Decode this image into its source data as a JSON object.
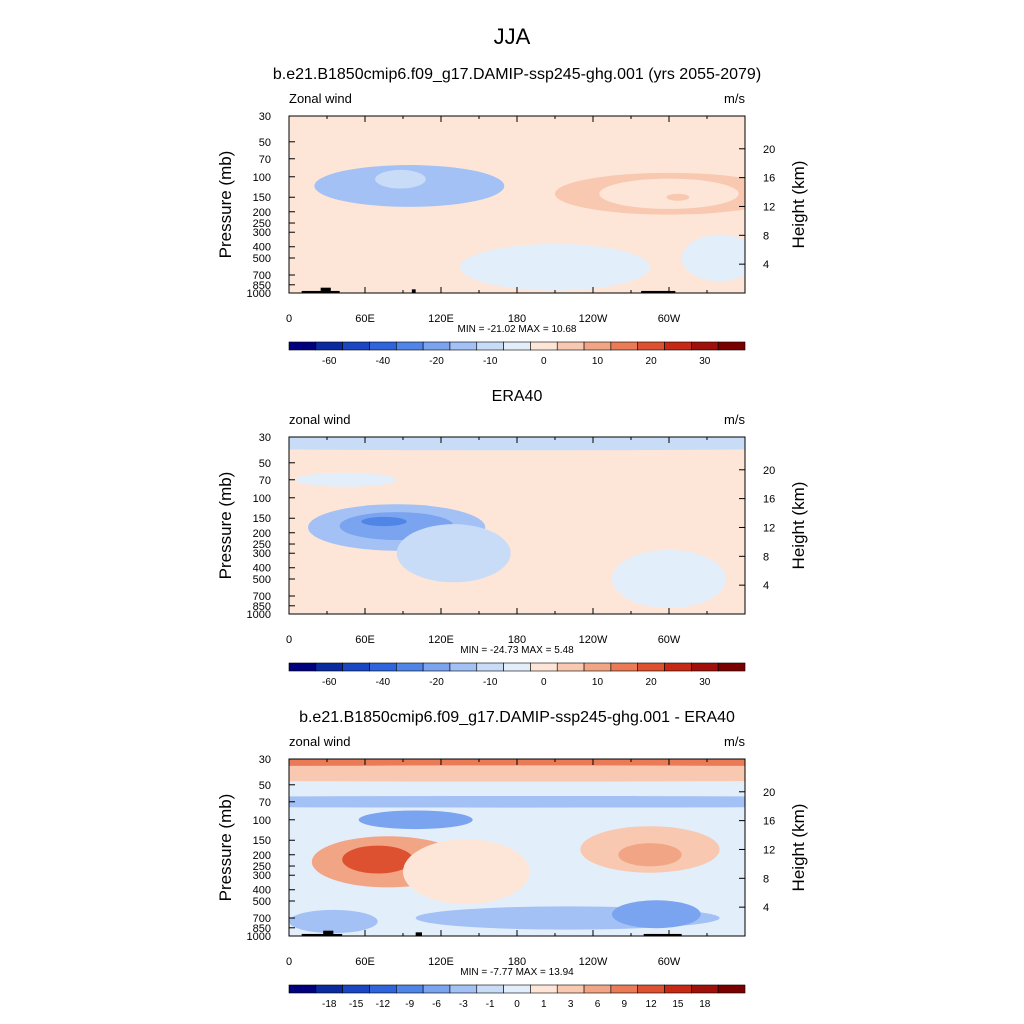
{
  "figure": {
    "title": "JJA",
    "panel_titles": [
      "b.e21.B1850cmip6.f09_g17.DAMIP-ssp245-ghg.001 (yrs 2055-2079)",
      "ERA40",
      "b.e21.B1850cmip6.f09_g17.DAMIP-ssp245-ghg.001 - ERA40"
    ]
  },
  "chart_data": [
    {
      "type": "heatmap",
      "title": "b.e21.B1850cmip6.f09_g17.DAMIP-ssp245-ghg.001 (yrs 2055-2079)",
      "variable_label": "Zonal wind",
      "units": "m/s",
      "ylabel": "Pressure (mb)",
      "ylabel_right": "Height (km)",
      "x_ticks": [
        "0",
        "60E",
        "120E",
        "180",
        "120W",
        "60W"
      ],
      "y_ticks": [
        "30",
        "50",
        "70",
        "100",
        "150",
        "200",
        "250",
        "300",
        "400",
        "500",
        "700",
        "850",
        "1000"
      ],
      "y_ticks_right": [
        "20",
        "16",
        "12",
        "8",
        "4"
      ],
      "xlim": [
        0,
        360
      ],
      "ylim": [
        1000,
        30
      ],
      "y_scale": "log",
      "stats": "MIN = -21.02  MAX =  10.68",
      "background_level": 2.5,
      "features": [
        {
          "lon": 95,
          "p": 120,
          "rlon": 75,
          "rlogp": 0.18,
          "value": -15
        },
        {
          "lon": 95,
          "p": 120,
          "rlon": 45,
          "rlogp": 0.13,
          "value": -12
        },
        {
          "lon": 88,
          "p": 105,
          "rlon": 20,
          "rlogp": 0.08,
          "value": -10
        },
        {
          "lon": 300,
          "p": 140,
          "rlon": 90,
          "rlogp": 0.18,
          "value": 5
        },
        {
          "lon": 300,
          "p": 140,
          "rlon": 55,
          "rlogp": 0.13,
          "value": 4
        },
        {
          "lon": 307,
          "p": 150,
          "rlon": 9,
          "rlogp": 0.03,
          "value": 7
        },
        {
          "lon": 75,
          "p": 400,
          "rlon": 75,
          "rlogp": 0.22,
          "value": 3
        },
        {
          "lon": 80,
          "p": 700,
          "rlon": 25,
          "rlogp": 0.05,
          "value": 3
        },
        {
          "lon": 210,
          "p": 600,
          "rlon": 75,
          "rlogp": 0.2,
          "value": -3
        },
        {
          "lon": 340,
          "p": 500,
          "rlon": 30,
          "rlogp": 0.2,
          "value": -3
        }
      ],
      "terrain": [
        {
          "lon0": 10,
          "lon1": 40,
          "p": 960
        },
        {
          "lon0": 25,
          "lon1": 33,
          "p": 900
        },
        {
          "lon0": 97,
          "lon1": 100,
          "p": 930
        },
        {
          "lon0": 278,
          "lon1": 305,
          "p": 960
        }
      ],
      "colorbar": {
        "labels": [
          "-60",
          "-40",
          "-20",
          "-10",
          "0",
          "10",
          "20",
          "30"
        ],
        "label_positions": [
          1,
          3,
          5,
          7,
          9,
          11,
          13,
          15
        ],
        "levels": [
          -70,
          -60,
          -50,
          -40,
          -30,
          -20,
          -15,
          -10,
          -5,
          0,
          5,
          10,
          15,
          20,
          25,
          30,
          40
        ]
      }
    },
    {
      "type": "heatmap",
      "title": "ERA40",
      "variable_label": "zonal wind",
      "units": "m/s",
      "ylabel": "Pressure (mb)",
      "ylabel_right": "Height (km)",
      "x_ticks": [
        "0",
        "60E",
        "120E",
        "180",
        "120W",
        "60W"
      ],
      "y_ticks": [
        "30",
        "50",
        "70",
        "100",
        "150",
        "200",
        "250",
        "300",
        "400",
        "500",
        "700",
        "850",
        "1000"
      ],
      "y_ticks_right": [
        "20",
        "16",
        "12",
        "8",
        "4"
      ],
      "xlim": [
        0,
        360
      ],
      "ylim": [
        1000,
        30
      ],
      "y_scale": "log",
      "stats": "MIN = -24.73  MAX =   5.48",
      "background_level": 2.5,
      "features": [
        {
          "lon": 180,
          "p": 34,
          "rlon": 400,
          "rlogp": 0.06,
          "value": -7
        },
        {
          "lon": 85,
          "p": 180,
          "rlon": 70,
          "rlogp": 0.2,
          "value": -12
        },
        {
          "lon": 85,
          "p": 175,
          "rlon": 45,
          "rlogp": 0.12,
          "value": -17
        },
        {
          "lon": 75,
          "p": 160,
          "rlon": 18,
          "rlogp": 0.04,
          "value": -22
        },
        {
          "lon": 130,
          "p": 300,
          "rlon": 45,
          "rlogp": 0.25,
          "value": -6
        },
        {
          "lon": 45,
          "p": 70,
          "rlon": 40,
          "rlogp": 0.06,
          "value": -3
        },
        {
          "lon": 270,
          "p": 110,
          "rlon": 80,
          "rlogp": 0.14,
          "value": 4
        },
        {
          "lon": 300,
          "p": 500,
          "rlon": 45,
          "rlogp": 0.25,
          "value": -4
        },
        {
          "lon": 70,
          "p": 650,
          "rlon": 45,
          "rlogp": 0.18,
          "value": 3
        }
      ],
      "terrain": [],
      "colorbar": {
        "labels": [
          "-60",
          "-40",
          "-20",
          "-10",
          "0",
          "10",
          "20",
          "30"
        ],
        "label_positions": [
          1,
          3,
          5,
          7,
          9,
          11,
          13,
          15
        ],
        "levels": [
          -70,
          -60,
          -50,
          -40,
          -30,
          -20,
          -15,
          -10,
          -5,
          0,
          5,
          10,
          15,
          20,
          25,
          30,
          40
        ]
      }
    },
    {
      "type": "heatmap",
      "title": "b.e21.B1850cmip6.f09_g17.DAMIP-ssp245-ghg.001 - ERA40",
      "variable_label": "zonal wind",
      "units": "m/s",
      "ylabel": "Pressure (mb)",
      "ylabel_right": "Height (km)",
      "x_ticks": [
        "0",
        "60E",
        "120E",
        "180",
        "120W",
        "60W"
      ],
      "y_ticks": [
        "30",
        "50",
        "70",
        "100",
        "150",
        "200",
        "250",
        "300",
        "400",
        "500",
        "700",
        "850",
        "1000"
      ],
      "y_ticks_right": [
        "20",
        "16",
        "12",
        "8",
        "4"
      ],
      "xlim": [
        0,
        360
      ],
      "ylim": [
        1000,
        30
      ],
      "y_scale": "log",
      "stats": "MIN = -7.77  MAX =  13.94",
      "background_level": 0.5,
      "features": [
        {
          "lon": 180,
          "p": 30,
          "rlon": 500,
          "rlogp": 0.08,
          "value": 10
        },
        {
          "lon": 180,
          "p": 40,
          "rlon": 500,
          "rlogp": 0.07,
          "value": 5
        },
        {
          "lon": 180,
          "p": 70,
          "rlon": 500,
          "rlogp": 0.05,
          "value": -2
        },
        {
          "lon": 100,
          "p": 100,
          "rlon": 45,
          "rlogp": 0.08,
          "value": -6
        },
        {
          "lon": 78,
          "p": 230,
          "rlon": 60,
          "rlogp": 0.22,
          "value": 7
        },
        {
          "lon": 70,
          "p": 220,
          "rlon": 28,
          "rlogp": 0.12,
          "value": 12
        },
        {
          "lon": 140,
          "p": 280,
          "rlon": 50,
          "rlogp": 0.28,
          "value": 2
        },
        {
          "lon": 285,
          "p": 180,
          "rlon": 55,
          "rlogp": 0.2,
          "value": 5
        },
        {
          "lon": 285,
          "p": 200,
          "rlon": 25,
          "rlogp": 0.1,
          "value": 8
        },
        {
          "lon": 220,
          "p": 700,
          "rlon": 120,
          "rlogp": 0.1,
          "value": -2
        },
        {
          "lon": 290,
          "p": 650,
          "rlon": 35,
          "rlogp": 0.12,
          "value": -4
        },
        {
          "lon": 35,
          "p": 750,
          "rlon": 35,
          "rlogp": 0.1,
          "value": -2
        }
      ],
      "terrain": [
        {
          "lon0": 10,
          "lon1": 42,
          "p": 960
        },
        {
          "lon0": 27,
          "lon1": 35,
          "p": 900
        },
        {
          "lon0": 100,
          "lon1": 105,
          "p": 930
        },
        {
          "lon0": 280,
          "lon1": 310,
          "p": 960
        }
      ],
      "colorbar": {
        "labels": [
          "-18",
          "-15",
          "-12",
          "-9",
          "-6",
          "-3",
          "-1",
          "0",
          "1",
          "3",
          "6",
          "9",
          "12",
          "15",
          "18"
        ],
        "label_positions": [
          1,
          2,
          3,
          4,
          5,
          6,
          7,
          8,
          9,
          10,
          11,
          12,
          13,
          14,
          15
        ],
        "levels": [
          -21,
          -18,
          -15,
          -12,
          -9,
          -6,
          -3,
          -1,
          0,
          1,
          3,
          6,
          9,
          12,
          15,
          18,
          21
        ]
      }
    }
  ],
  "palette": [
    "#00007f",
    "#0a2aa0",
    "#1a46c4",
    "#2e64dc",
    "#5085e8",
    "#7aa4f0",
    "#a3c1f5",
    "#c8dcf8",
    "#e3eefb",
    "#fde6d8",
    "#f8c9b0",
    "#f2a585",
    "#ea7b56",
    "#dd5030",
    "#c62a15",
    "#a0100a",
    "#7a0000"
  ]
}
